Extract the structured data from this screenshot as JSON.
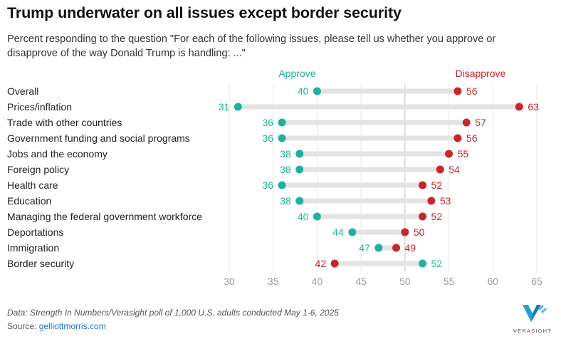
{
  "title": "Trump underwater on all issues except border security",
  "subtitle": "Percent responding to the question \"For each of the following issues, please tell us whether you approve or disapprove of the way Donald Trump is handling: ...\"",
  "footer": {
    "source_line": "Data: Strength In Numbers/Verasight poll of 1,000 U.S. adults conducted May 1-6, 2025",
    "source_label": "Source: ",
    "source_link": "gelliottmorris.com",
    "logo_text": "VERASIGHT"
  },
  "colors": {
    "approve": "#1cb39c",
    "disapprove": "#c8262a",
    "bar": "#e3e3e3",
    "grid": "#e6e6e6",
    "tick_label": "#9a9a9a"
  },
  "chart_data": {
    "type": "dumbbell",
    "legend": {
      "approve": "Approve",
      "disapprove": "Disapprove"
    },
    "xlim": [
      30,
      65
    ],
    "xticks": [
      30,
      35,
      40,
      45,
      50,
      55,
      60,
      65
    ],
    "reference_line": 50,
    "categories": [
      "Overall",
      "Prices/inflation",
      "Trade with other countries",
      "Government funding and social programs",
      "Jobs and the economy",
      "Foreign policy",
      "Health care",
      "Education",
      "Managing the federal government workforce",
      "Deportations",
      "Immigration",
      "Border security"
    ],
    "series": [
      {
        "name": "Approve",
        "values": [
          40,
          31,
          36,
          36,
          38,
          38,
          36,
          38,
          40,
          44,
          47,
          52
        ]
      },
      {
        "name": "Disapprove",
        "values": [
          56,
          63,
          57,
          56,
          55,
          54,
          52,
          53,
          52,
          50,
          49,
          42
        ]
      }
    ]
  }
}
